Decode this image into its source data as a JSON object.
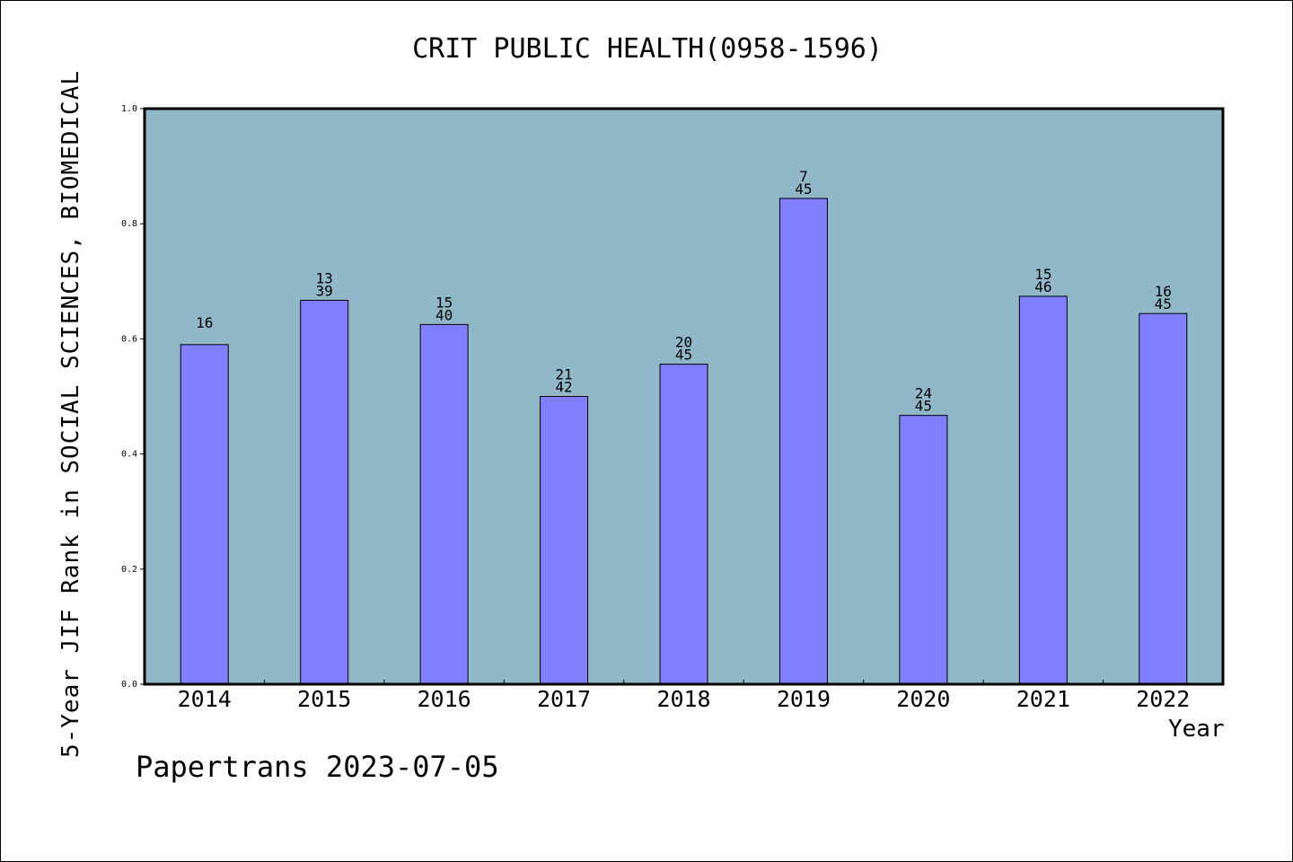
{
  "chart_data": {
    "type": "bar",
    "title": "CRIT PUBLIC HEALTH(0958-1596)",
    "xlabel": "Year",
    "ylabel": "5-Year JIF Rank in SOCIAL SCIENCES, BIOMEDICAL",
    "ylim": [
      0,
      1.0
    ],
    "yticks": [
      "0.0",
      "0.2",
      "0.4",
      "0.6",
      "0.8",
      "1.0"
    ],
    "categories": [
      "2014",
      "2015",
      "2016",
      "2017",
      "2018",
      "2019",
      "2020",
      "2021",
      "2022"
    ],
    "values": [
      0.59,
      0.667,
      0.625,
      0.5,
      0.556,
      0.844,
      0.467,
      0.674,
      0.644
    ],
    "bar_labels": [
      {
        "rank": "16",
        "total": ""
      },
      {
        "rank": "13",
        "total": "39"
      },
      {
        "rank": "15",
        "total": "40"
      },
      {
        "rank": "21",
        "total": "42"
      },
      {
        "rank": "20",
        "total": "45"
      },
      {
        "rank": "7",
        "total": "45"
      },
      {
        "rank": "24",
        "total": "45"
      },
      {
        "rank": "15",
        "total": "46"
      },
      {
        "rank": "16",
        "total": "45"
      }
    ],
    "grid": false,
    "colors": {
      "plot_background": "#90b8c8",
      "bar_fill": "#8080ff",
      "bar_stroke": "#000000"
    }
  },
  "footer": {
    "credit": "Papertrans 2023-07-05"
  }
}
